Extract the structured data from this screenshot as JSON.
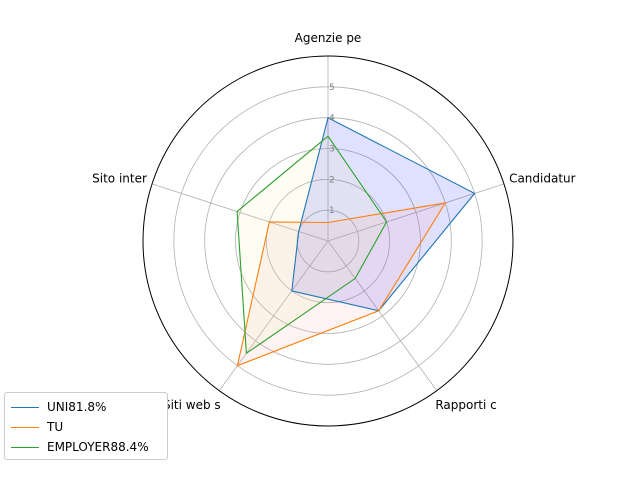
{
  "chart_data": {
    "type": "radar",
    "axes": [
      "Agenzie pe",
      "Candidatur",
      "Rapporti c",
      "Siti web s",
      "Sito inter"
    ],
    "rticks": [
      1,
      2,
      3,
      4,
      5
    ],
    "rmax": 6,
    "grid": true,
    "legend_position": "lower-left",
    "series": [
      {
        "name": "UNI81.8%",
        "color": "#1f77b4",
        "fill": "#0000ff",
        "values": [
          4.0,
          5.0,
          2.8,
          2.0,
          1.0
        ]
      },
      {
        "name": "TU",
        "color": "#ff7f0e",
        "fill": "#ffa0a0",
        "values": [
          0.6,
          4.0,
          2.8,
          5.0,
          2.0
        ]
      },
      {
        "name": "EMPLOYER88.4%",
        "color": "#2ca02c",
        "fill": "#f0f0a0",
        "values": [
          3.4,
          2.0,
          1.5,
          4.5,
          3.1
        ]
      }
    ]
  }
}
